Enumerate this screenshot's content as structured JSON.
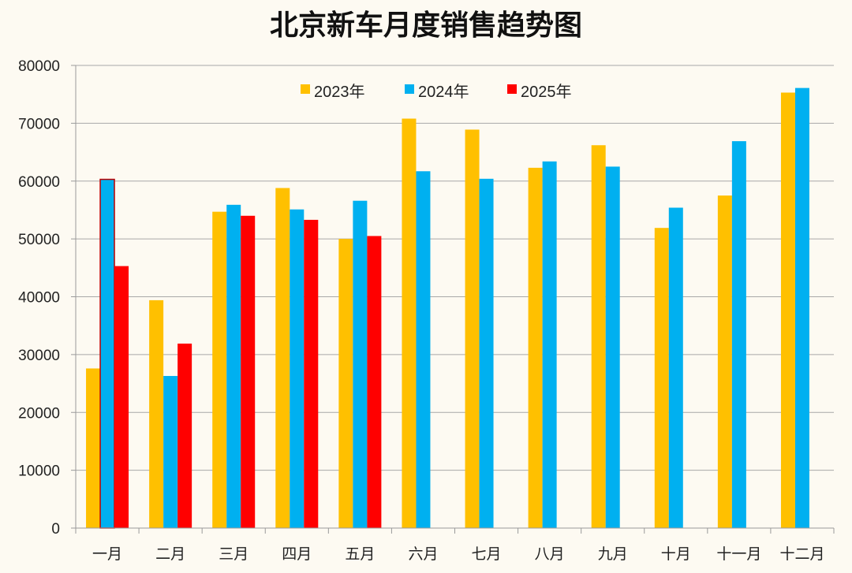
{
  "chart_data": {
    "type": "bar",
    "title": "北京新车月度销售趋势图",
    "xlabel": "",
    "ylabel": "",
    "ylim": [
      0,
      80000
    ],
    "yticks": [
      0,
      10000,
      20000,
      30000,
      40000,
      50000,
      60000,
      70000,
      80000
    ],
    "grid": true,
    "legend_position": "top-center",
    "categories": [
      "一月",
      "二月",
      "三月",
      "四月",
      "五月",
      "六月",
      "七月",
      "八月",
      "九月",
      "十月",
      "十一月",
      "十二月"
    ],
    "series": [
      {
        "name": "2023年",
        "color": "#ffc000",
        "values": [
          27600,
          39400,
          54700,
          58800,
          50000,
          70800,
          68900,
          62300,
          66200,
          51900,
          57500,
          75300
        ]
      },
      {
        "name": "2024年",
        "color": "#00b0f0",
        "values": [
          60300,
          26300,
          55900,
          55100,
          56600,
          61700,
          60400,
          63400,
          62500,
          55400,
          66900,
          76100
        ]
      },
      {
        "name": "2025年",
        "color": "#ff0000",
        "values": [
          45300,
          31900,
          54000,
          53300,
          50500,
          null,
          null,
          null,
          null,
          null,
          null,
          null
        ]
      }
    ]
  }
}
